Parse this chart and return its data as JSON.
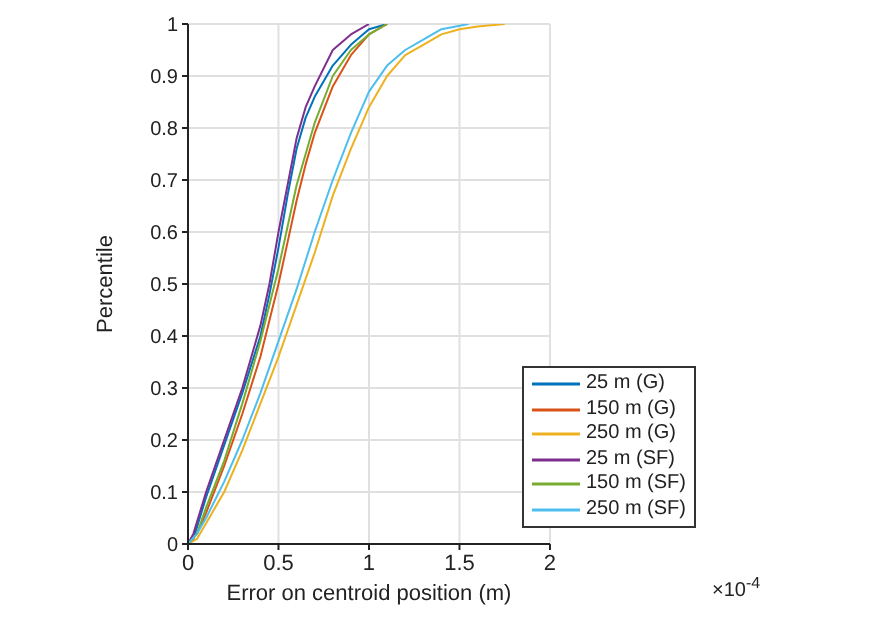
{
  "chart_data": {
    "type": "line",
    "xlabel": "Error on centroid position (m)",
    "ylabel": "Percentile",
    "annotations": [
      "×10$^{-4}$"
    ],
    "xlim": [
      0,
      2
    ],
    "xticks": [
      0,
      0.5,
      1,
      1.5,
      2
    ],
    "ylim": [
      0,
      1
    ],
    "yticks": [
      0,
      0.1,
      0.2,
      0.3,
      0.4,
      0.5,
      0.6,
      0.7,
      0.8,
      0.9,
      1
    ],
    "grid": true,
    "legend": "bottom right",
    "marker": "none",
    "line_style": "solid",
    "series": [
      {
        "name": "25 m (G)",
        "color": "#0072bd",
        "x": [
          0,
          0.03,
          0.1,
          0.2,
          0.3,
          0.4,
          0.45,
          0.5,
          0.55,
          0.6,
          0.65,
          0.7,
          0.8,
          0.9,
          1.0,
          1.1
        ],
        "values": [
          0,
          0.01,
          0.09,
          0.19,
          0.29,
          0.4,
          0.48,
          0.57,
          0.67,
          0.76,
          0.82,
          0.86,
          0.92,
          0.96,
          0.99,
          1
        ]
      },
      {
        "name": "150 m (G)",
        "color": "#d95319",
        "x": [
          0,
          0.05,
          0.1,
          0.2,
          0.3,
          0.4,
          0.5,
          0.55,
          0.6,
          0.65,
          0.7,
          0.8,
          0.9,
          1.0,
          1.1
        ],
        "values": [
          0,
          0.02,
          0.06,
          0.15,
          0.25,
          0.36,
          0.5,
          0.58,
          0.66,
          0.73,
          0.79,
          0.88,
          0.94,
          0.98,
          1
        ]
      },
      {
        "name": "250 m (G)",
        "color": "#edb120",
        "x": [
          0,
          0.05,
          0.1,
          0.2,
          0.3,
          0.4,
          0.5,
          0.6,
          0.7,
          0.8,
          0.9,
          1.0,
          1.1,
          1.2,
          1.3,
          1.4,
          1.5,
          1.6,
          1.75
        ],
        "values": [
          0,
          0.01,
          0.04,
          0.1,
          0.18,
          0.27,
          0.36,
          0.46,
          0.56,
          0.67,
          0.76,
          0.84,
          0.9,
          0.94,
          0.96,
          0.98,
          0.99,
          0.995,
          1
        ]
      },
      {
        "name": "25 m (SF)",
        "color": "#7e2f8e",
        "x": [
          0,
          0.03,
          0.1,
          0.2,
          0.3,
          0.4,
          0.45,
          0.5,
          0.55,
          0.6,
          0.65,
          0.7,
          0.8,
          0.9,
          1.0
        ],
        "values": [
          0,
          0.02,
          0.1,
          0.2,
          0.3,
          0.42,
          0.5,
          0.6,
          0.69,
          0.78,
          0.84,
          0.88,
          0.95,
          0.98,
          1
        ]
      },
      {
        "name": "150 m (SF)",
        "color": "#77ac30",
        "x": [
          0,
          0.05,
          0.1,
          0.2,
          0.3,
          0.4,
          0.5,
          0.55,
          0.6,
          0.65,
          0.7,
          0.8,
          0.9,
          1.0,
          1.1
        ],
        "values": [
          0,
          0.02,
          0.07,
          0.16,
          0.27,
          0.39,
          0.53,
          0.61,
          0.69,
          0.75,
          0.81,
          0.9,
          0.95,
          0.98,
          1
        ]
      },
      {
        "name": "250 m (SF)",
        "color": "#4dbeee",
        "x": [
          0,
          0.05,
          0.1,
          0.2,
          0.3,
          0.4,
          0.5,
          0.6,
          0.7,
          0.8,
          0.9,
          1.0,
          1.1,
          1.2,
          1.3,
          1.4,
          1.55
        ],
        "values": [
          0,
          0.02,
          0.05,
          0.12,
          0.2,
          0.29,
          0.39,
          0.49,
          0.6,
          0.7,
          0.79,
          0.87,
          0.92,
          0.95,
          0.97,
          0.99,
          1
        ]
      }
    ]
  }
}
